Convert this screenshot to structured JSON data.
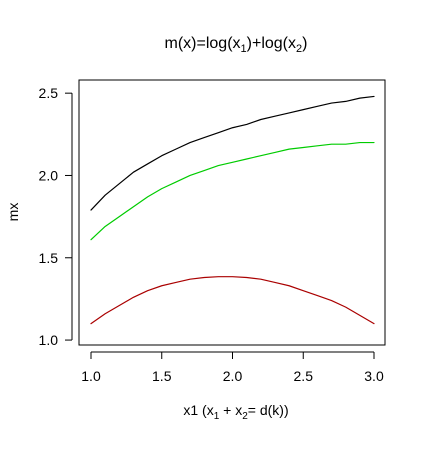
{
  "chart_data": {
    "type": "line",
    "title": "m(x)=log(x",
    "title_sub1": "1",
    "title_mid": ")+log(x",
    "title_sub2": "2",
    "title_end": ")",
    "xlabel": "x1  (x",
    "xlabel_sub1": "1",
    "xlabel_mid": " + x",
    "xlabel_sub2": "2",
    "xlabel_end": "= d(k))",
    "ylabel": "mx",
    "xlim": [
      1.0,
      3.0
    ],
    "ylim": [
      0.97,
      2.58
    ],
    "xticks": [
      1.0,
      1.5,
      2.0,
      2.5,
      3.0
    ],
    "xtick_labels": [
      "1.0",
      "1.5",
      "2.0",
      "2.5",
      "3.0"
    ],
    "yticks": [
      1.0,
      1.5,
      2.0,
      2.5
    ],
    "ytick_labels": [
      "1.0",
      "1.5",
      "2.0",
      "2.5"
    ],
    "grid": false,
    "x": [
      1.0,
      1.1,
      1.2,
      1.3,
      1.4,
      1.5,
      1.6,
      1.7,
      1.8,
      1.9,
      2.0,
      2.1,
      2.2,
      2.3,
      2.4,
      2.5,
      2.6,
      2.7,
      2.8,
      2.9,
      3.0
    ],
    "series": [
      {
        "color": "#000000",
        "values": [
          1.79,
          1.88,
          1.95,
          2.02,
          2.07,
          2.12,
          2.16,
          2.2,
          2.23,
          2.26,
          2.29,
          2.31,
          2.34,
          2.36,
          2.38,
          2.4,
          2.42,
          2.44,
          2.45,
          2.47,
          2.48
        ]
      },
      {
        "color": "#00cc00",
        "values": [
          1.61,
          1.69,
          1.75,
          1.81,
          1.87,
          1.92,
          1.96,
          2.0,
          2.03,
          2.06,
          2.08,
          2.1,
          2.12,
          2.14,
          2.16,
          2.17,
          2.18,
          2.19,
          2.19,
          2.2,
          2.2
        ]
      },
      {
        "color": "#aa0000",
        "values": [
          1.1,
          1.16,
          1.21,
          1.26,
          1.3,
          1.33,
          1.35,
          1.37,
          1.38,
          1.385,
          1.385,
          1.38,
          1.37,
          1.35,
          1.33,
          1.3,
          1.27,
          1.24,
          1.2,
          1.15,
          1.1
        ]
      }
    ]
  }
}
